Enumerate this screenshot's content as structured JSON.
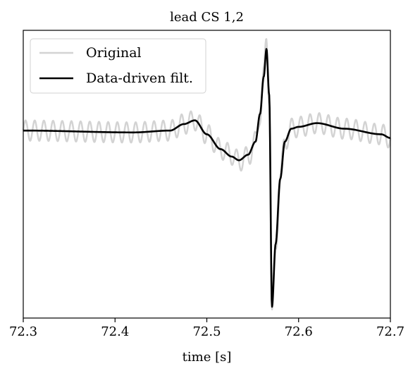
{
  "chart_data": {
    "type": "line",
    "title": "lead CS 1,2",
    "xlabel": "time [s]",
    "ylabel": "",
    "xlim": [
      72.3,
      72.7
    ],
    "ylim": [
      -1.0,
      0.55
    ],
    "xticks": [
      72.3,
      72.4,
      72.5,
      72.6,
      72.7
    ],
    "xtick_labels": [
      "72.3",
      "72.4",
      "72.5",
      "72.6",
      "72.7"
    ],
    "yticks_visible": false,
    "grid": false,
    "legend": {
      "position": "top-left",
      "entries": [
        "Original",
        "Data-driven filt."
      ]
    },
    "series": [
      {
        "name": "Original",
        "color": "#d3d3d3",
        "oscillation": {
          "amplitude": 0.055,
          "period_s": 0.01
        },
        "x": [
          72.3,
          72.42,
          72.46,
          72.475,
          72.487,
          72.5,
          72.515,
          72.527,
          72.535,
          72.545,
          72.553,
          72.558,
          72.562,
          72.565,
          72.568,
          72.571,
          72.575,
          72.58,
          72.585,
          72.592,
          72.6,
          72.62,
          72.65,
          72.69,
          72.7
        ],
        "y": [
          0.01,
          0.0,
          0.01,
          0.045,
          0.065,
          -0.01,
          -0.09,
          -0.12,
          -0.155,
          -0.13,
          -0.05,
          0.1,
          0.3,
          0.5,
          0.2,
          -0.99,
          -0.62,
          -0.25,
          -0.05,
          0.02,
          0.03,
          0.05,
          0.02,
          -0.01,
          -0.03
        ]
      },
      {
        "name": "Data-driven filt.",
        "color": "#000000",
        "x": [
          72.3,
          72.42,
          72.46,
          72.475,
          72.487,
          72.5,
          72.515,
          72.527,
          72.535,
          72.545,
          72.553,
          72.558,
          72.562,
          72.565,
          72.568,
          72.571,
          72.575,
          72.58,
          72.585,
          72.592,
          72.6,
          72.62,
          72.65,
          72.69,
          72.7
        ],
        "y": [
          0.01,
          0.0,
          0.01,
          0.045,
          0.065,
          -0.01,
          -0.09,
          -0.13,
          -0.15,
          -0.12,
          -0.05,
          0.1,
          0.3,
          0.45,
          0.2,
          -0.94,
          -0.6,
          -0.25,
          -0.05,
          0.02,
          0.03,
          0.05,
          0.02,
          -0.01,
          -0.03
        ]
      }
    ]
  }
}
